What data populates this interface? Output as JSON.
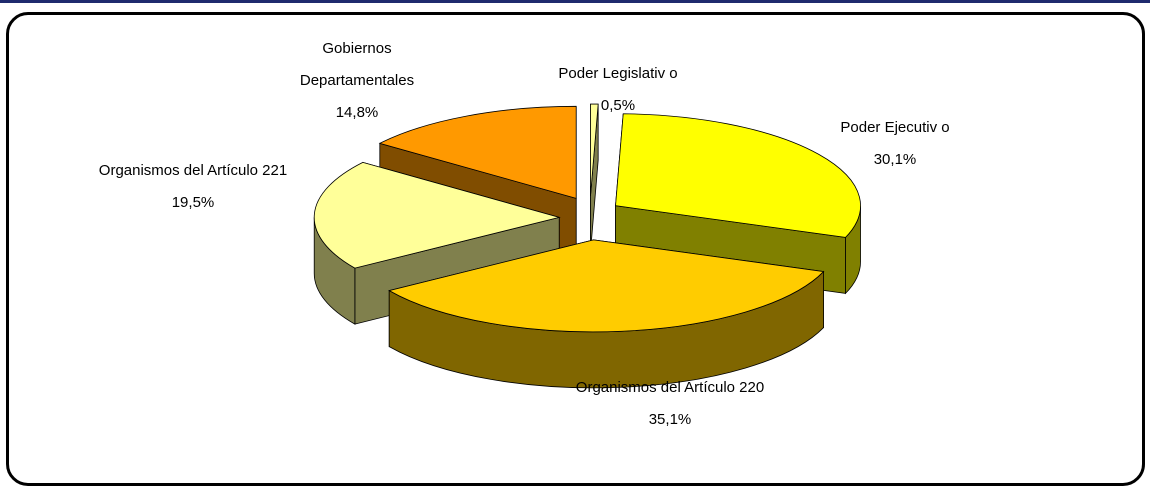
{
  "chart_data": {
    "type": "pie",
    "categories": [
      "Poder Legislativ o",
      "Poder Ejecutiv o",
      "Organismos del Artículo 220",
      "Organismos del Artículo 221",
      "Gobiernos Departamentales"
    ],
    "values": [
      0.5,
      30.1,
      35.1,
      19.5,
      14.8
    ],
    "value_labels": [
      "0,5%",
      "30,1%",
      "35,1%",
      "19,5%",
      "14,8%"
    ],
    "colors": [
      "#ffff99",
      "#ffff00",
      "#ffcc00",
      "#ffff99",
      "#ff9900"
    ],
    "three_d": true,
    "exploded": true
  }
}
